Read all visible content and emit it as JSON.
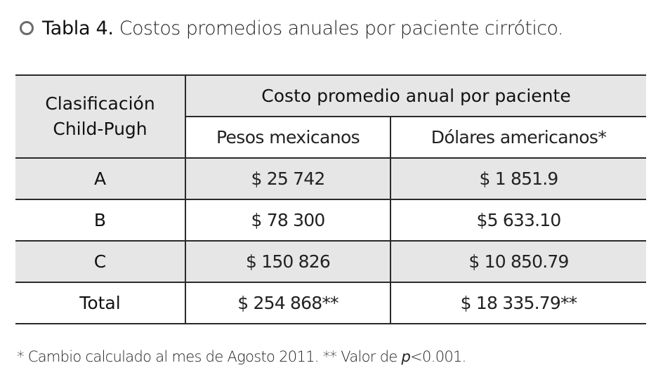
{
  "caption": {
    "label": "Tabla 4.",
    "text": "Costos promedios anuales por paciente cirrótico."
  },
  "table": {
    "header": {
      "classification_line1": "Clasificación",
      "classification_line2": "Child-Pugh",
      "group": "Costo promedio anual por paciente",
      "col_mxn": "Pesos mexicanos",
      "col_usd": "Dólares americanos*"
    },
    "rows": [
      {
        "class": "A",
        "mxn": "$ 25 742",
        "usd": "$ 1 851.9"
      },
      {
        "class": "B",
        "mxn": "$ 78 300",
        "usd": "$5 633.10"
      },
      {
        "class": "C",
        "mxn": "$ 150 826",
        "usd": "$ 10 850.79"
      },
      {
        "class": "Total",
        "mxn": "$ 254 868**",
        "usd": "$ 18 335.79**"
      }
    ]
  },
  "footnote": {
    "part1": "* Cambio calculado al mes de Agosto 2011. ** Valor de ",
    "p": "p",
    "part2": "<0.001."
  },
  "colors": {
    "shade": "#e6e6e7",
    "rule": "#2a2a2a",
    "bullet": "#6b6b6b"
  }
}
